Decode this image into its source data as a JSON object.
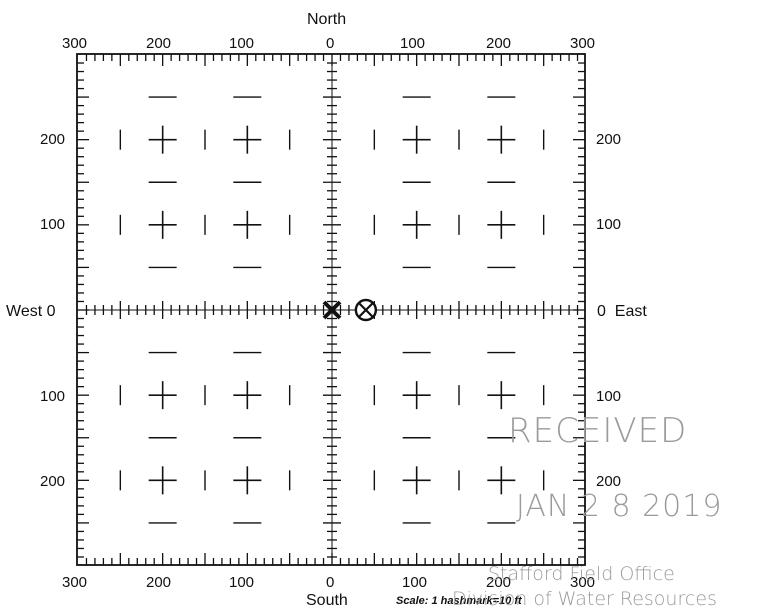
{
  "directions": {
    "north": "North",
    "south": "South",
    "west": "West 0",
    "east": "0  East"
  },
  "top_labels": [
    "300",
    "200",
    "100",
    "0",
    "100",
    "200",
    "300"
  ],
  "bottom_labels": [
    "300",
    "200",
    "100",
    "0",
    "100",
    "200",
    "300"
  ],
  "left_labels": [
    "200",
    "100",
    "100",
    "200"
  ],
  "right_labels": [
    "200",
    "100",
    "100",
    "200"
  ],
  "scale_note": "Scale: 1 hashmark=10 ft",
  "stamp": {
    "received": "RECEIVED",
    "date": "JAN 2 8 2019",
    "office": "Stafford Field Office",
    "division": "Division of Water Resources"
  },
  "markers": [
    {
      "type": "bold-x",
      "icon": "well-marker-x-icon",
      "east_ft": 0,
      "north_ft": 0
    },
    {
      "type": "circled-x",
      "icon": "circled-x-icon",
      "east_ft": 40,
      "north_ft": 0
    }
  ]
}
